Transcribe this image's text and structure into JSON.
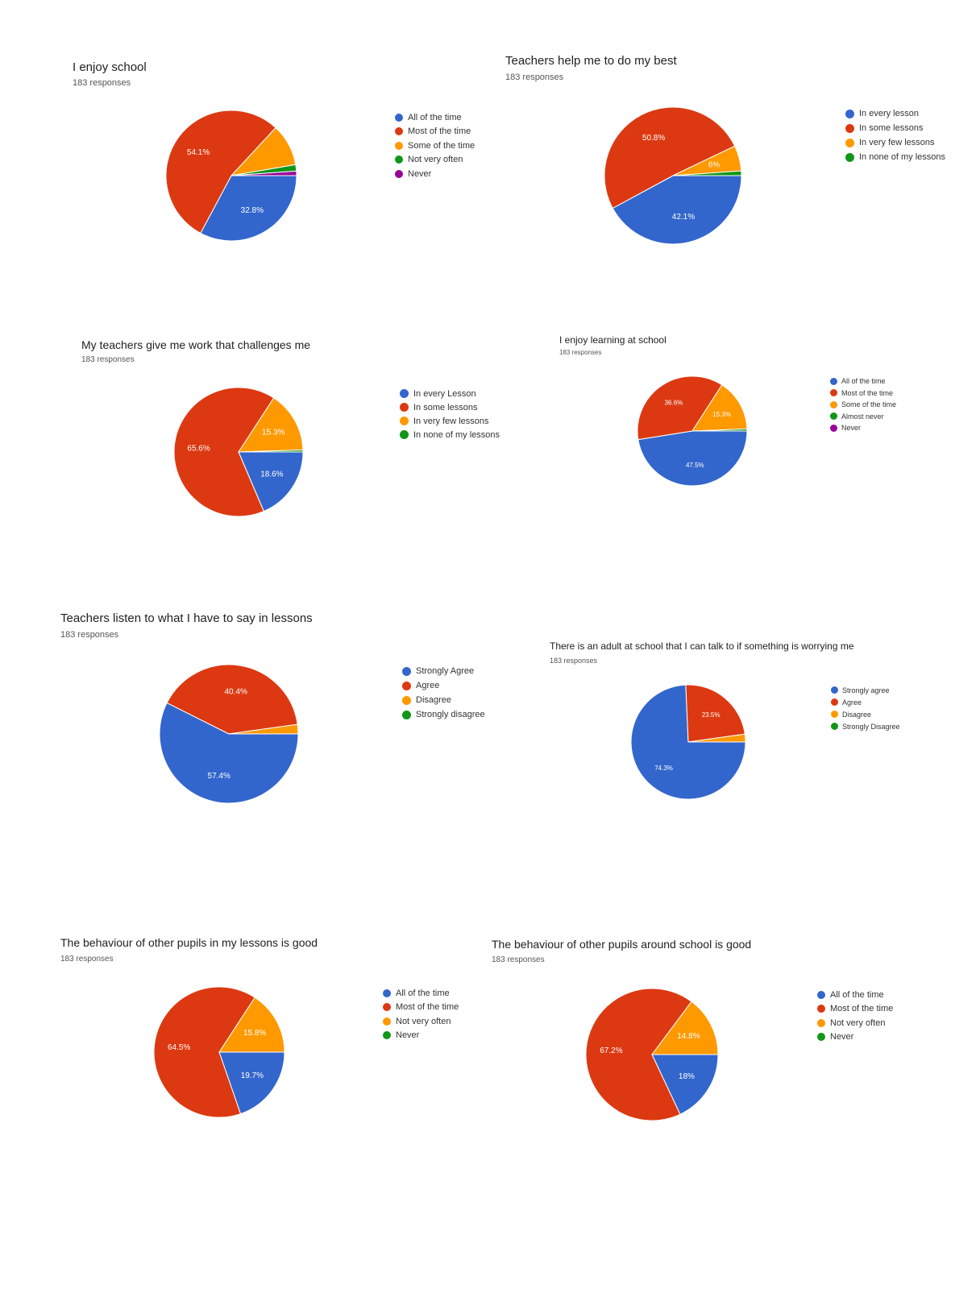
{
  "colors": {
    "blue": "#3366cc",
    "red": "#dc3912",
    "orange": "#ff9900",
    "green": "#109618",
    "purple": "#990099",
    "slice_label": "#ffffff"
  },
  "chart_data": [
    {
      "type": "pie",
      "title": "I enjoy school",
      "subtitle": "183 responses",
      "legend_position": "right",
      "slices": [
        {
          "label": "All of the time",
          "value": 32.8,
          "display": "32.8%",
          "color": "#3366cc"
        },
        {
          "label": "Most of the time",
          "value": 54.1,
          "display": "54.1%",
          "color": "#dc3912"
        },
        {
          "label": "Some of the time",
          "value": 10.4,
          "display": "",
          "color": "#ff9900"
        },
        {
          "label": "Not very often",
          "value": 1.6,
          "display": "",
          "color": "#109618"
        },
        {
          "label": "Never",
          "value": 1.1,
          "display": "",
          "color": "#990099"
        }
      ]
    },
    {
      "type": "pie",
      "title": "Teachers help me to do my best",
      "subtitle": "183 responses",
      "legend_position": "right",
      "slices": [
        {
          "label": "In every lesson",
          "value": 42.1,
          "display": "42.1%",
          "color": "#3366cc"
        },
        {
          "label": "In some lessons",
          "value": 50.8,
          "display": "50.8%",
          "color": "#dc3912"
        },
        {
          "label": "In very few lessons",
          "value": 6.0,
          "display": "6%",
          "color": "#ff9900"
        },
        {
          "label": "In none of my lessons",
          "value": 1.1,
          "display": "",
          "color": "#109618"
        }
      ]
    },
    {
      "type": "pie",
      "title": "My teachers give me work that challenges me",
      "subtitle": "183 responses",
      "legend_position": "right",
      "slices": [
        {
          "label": "In every Lesson",
          "value": 18.6,
          "display": "18.6%",
          "color": "#3366cc"
        },
        {
          "label": "In some lessons",
          "value": 65.6,
          "display": "65.6%",
          "color": "#dc3912"
        },
        {
          "label": "In very few lessons",
          "value": 15.3,
          "display": "15.3%",
          "color": "#ff9900"
        },
        {
          "label": "In none of my lessons",
          "value": 0.5,
          "display": "",
          "color": "#109618"
        }
      ]
    },
    {
      "type": "pie",
      "title": "I enjoy learning at school",
      "subtitle": "183 responses",
      "legend_position": "right",
      "slices": [
        {
          "label": "All of the time",
          "value": 47.5,
          "display": "47.5%",
          "color": "#3366cc"
        },
        {
          "label": "Most of the time",
          "value": 36.6,
          "display": "36.6%",
          "color": "#dc3912"
        },
        {
          "label": "Some of the time",
          "value": 15.3,
          "display": "15.3%",
          "color": "#ff9900"
        },
        {
          "label": "Almost never",
          "value": 0.6,
          "display": "",
          "color": "#109618"
        },
        {
          "label": "Never",
          "value": 0.0,
          "display": "",
          "color": "#990099"
        }
      ]
    },
    {
      "type": "pie",
      "title": "Teachers listen to what I have to say in lessons",
      "subtitle": "183 responses",
      "legend_position": "right",
      "slices": [
        {
          "label": "Strongly Agree",
          "value": 57.4,
          "display": "57.4%",
          "color": "#3366cc"
        },
        {
          "label": "Agree",
          "value": 40.4,
          "display": "40.4%",
          "color": "#dc3912"
        },
        {
          "label": "Disagree",
          "value": 2.2,
          "display": "",
          "color": "#ff9900"
        },
        {
          "label": "Strongly disagree",
          "value": 0.0,
          "display": "",
          "color": "#109618"
        }
      ]
    },
    {
      "type": "pie",
      "title": "There is an adult at school that I can talk to if something is worrying me",
      "subtitle": "183 responses",
      "legend_position": "right",
      "slices": [
        {
          "label": "Strongly agree",
          "value": 74.3,
          "display": "74.3%",
          "color": "#3366cc"
        },
        {
          "label": "Agree",
          "value": 23.5,
          "display": "23.5%",
          "color": "#dc3912"
        },
        {
          "label": "Disagree",
          "value": 2.2,
          "display": "",
          "color": "#ff9900"
        },
        {
          "label": "Strongly Disagree",
          "value": 0.0,
          "display": "",
          "color": "#109618"
        }
      ]
    },
    {
      "type": "pie",
      "title": "The behaviour of other pupils in my lessons is good",
      "subtitle": "183 responses",
      "legend_position": "right",
      "slices": [
        {
          "label": "All of the time",
          "value": 19.7,
          "display": "19.7%",
          "color": "#3366cc"
        },
        {
          "label": "Most of the time",
          "value": 64.5,
          "display": "64.5%",
          "color": "#dc3912"
        },
        {
          "label": "Not very often",
          "value": 15.8,
          "display": "15.8%",
          "color": "#ff9900"
        },
        {
          "label": "Never",
          "value": 0.0,
          "display": "",
          "color": "#109618"
        }
      ]
    },
    {
      "type": "pie",
      "title": "The behaviour of other pupils around school is good",
      "subtitle": "183 responses",
      "legend_position": "right",
      "slices": [
        {
          "label": "All of the time",
          "value": 18.0,
          "display": "18%",
          "color": "#3366cc"
        },
        {
          "label": "Most of the time",
          "value": 67.2,
          "display": "67.2%",
          "color": "#dc3912"
        },
        {
          "label": "Not very often",
          "value": 14.8,
          "display": "14.8%",
          "color": "#ff9900"
        },
        {
          "label": "Never",
          "value": 0.0,
          "display": "",
          "color": "#109618"
        }
      ]
    }
  ]
}
